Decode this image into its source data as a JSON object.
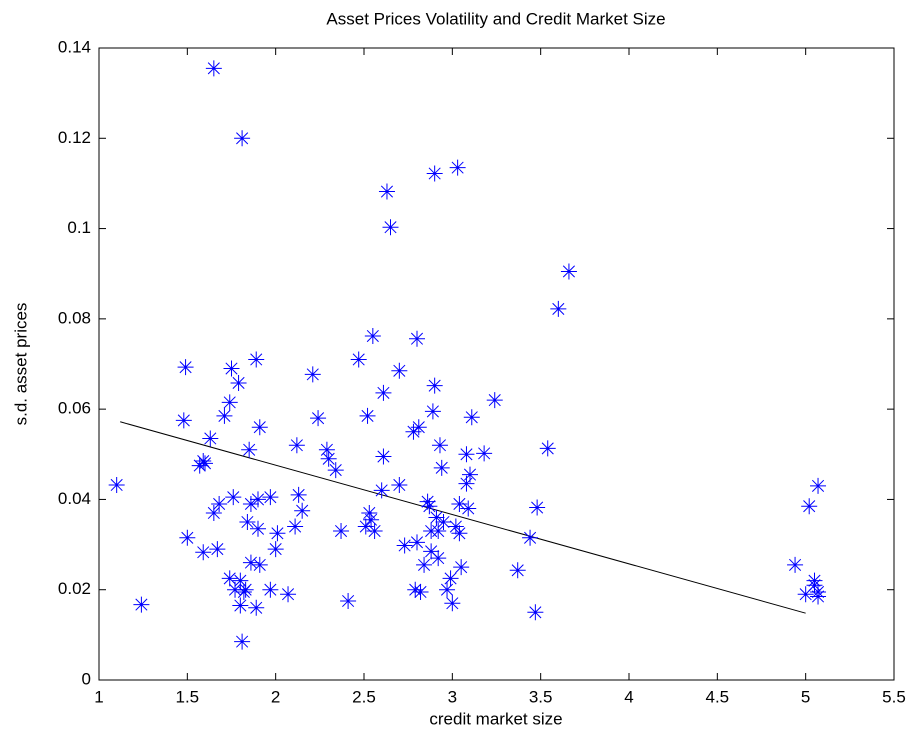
{
  "chart_data": {
    "type": "scatter",
    "title": "Asset Prices Volatility and Credit Market Size",
    "x_label": "credit market size",
    "y_label": "s.d. asset prices",
    "xlim": [
      1,
      5.5
    ],
    "xticks": [
      1,
      1.5,
      2,
      2.5,
      3,
      3.5,
      4,
      4.5,
      5,
      5.5
    ],
    "ylim": [
      0,
      0.14
    ],
    "yticks": [
      0,
      0.02,
      0.04,
      0.06,
      0.08,
      0.1,
      0.12,
      0.14
    ],
    "marker_color": "#0000ff",
    "line_color": "#000000",
    "x": [
      1.1,
      1.24,
      1.49,
      1.48,
      1.5,
      1.57,
      1.59,
      1.6,
      1.59,
      1.63,
      1.65,
      1.65,
      1.67,
      1.68,
      1.71,
      1.74,
      1.74,
      1.75,
      1.76,
      1.77,
      1.79,
      1.8,
      1.8,
      1.81,
      1.81,
      1.82,
      1.83,
      1.84,
      1.85,
      1.86,
      1.86,
      1.89,
      1.89,
      1.9,
      1.9,
      1.91,
      1.91,
      1.97,
      1.97,
      2.0,
      2.01,
      2.07,
      2.11,
      2.12,
      2.13,
      2.15,
      2.21,
      2.24,
      2.29,
      2.3,
      2.34,
      2.37,
      2.41,
      2.47,
      2.51,
      2.52,
      2.53,
      2.55,
      2.54,
      2.56,
      2.6,
      2.61,
      2.61,
      2.63,
      2.65,
      2.7,
      2.7,
      2.73,
      2.78,
      2.79,
      2.8,
      2.8,
      2.81,
      2.82,
      2.84,
      2.86,
      2.87,
      2.88,
      2.88,
      2.89,
      2.9,
      2.9,
      2.91,
      2.92,
      2.92,
      2.93,
      2.94,
      2.95,
      2.97,
      2.99,
      3.0,
      3.02,
      3.03,
      3.04,
      3.04,
      3.05,
      3.08,
      3.08,
      3.09,
      3.1,
      3.11,
      3.18,
      3.24,
      3.37,
      3.44,
      3.47,
      3.48,
      3.54,
      3.6,
      3.66,
      4.94,
      5.0,
      5.02,
      5.05,
      5.05,
      5.07,
      5.07,
      5.07
    ],
    "series": [
      {
        "values": [
          0.0432,
          0.0167,
          0.0693,
          0.0575,
          0.0315,
          0.0475,
          0.0485,
          0.048,
          0.0283,
          0.0535,
          0.1355,
          0.037,
          0.029,
          0.039,
          0.0585,
          0.0225,
          0.0615,
          0.069,
          0.0405,
          0.02,
          0.0658,
          0.022,
          0.0165,
          0.12,
          0.0085,
          0.0195,
          0.02,
          0.035,
          0.051,
          0.039,
          0.026,
          0.071,
          0.016,
          0.04,
          0.0335,
          0.056,
          0.0255,
          0.0405,
          0.02,
          0.029,
          0.0325,
          0.019,
          0.034,
          0.052,
          0.041,
          0.0375,
          0.0677,
          0.058,
          0.051,
          0.049,
          0.0465,
          0.033,
          0.0175,
          0.071,
          0.034,
          0.0585,
          0.037,
          0.0762,
          0.0355,
          0.033,
          0.042,
          0.0495,
          0.0636,
          0.1082,
          0.1003,
          0.0685,
          0.0432,
          0.0298,
          0.055,
          0.02,
          0.0756,
          0.0305,
          0.056,
          0.0195,
          0.0255,
          0.0395,
          0.0385,
          0.033,
          0.0285,
          0.0595,
          0.1122,
          0.0652,
          0.036,
          0.027,
          0.033,
          0.052,
          0.047,
          0.035,
          0.02,
          0.0225,
          0.017,
          0.034,
          0.1135,
          0.039,
          0.0325,
          0.025,
          0.05,
          0.0435,
          0.038,
          0.0455,
          0.0582,
          0.0502,
          0.062,
          0.0243,
          0.0315,
          0.015,
          0.0382,
          0.0513,
          0.0822,
          0.0905,
          0.0255,
          0.019,
          0.0385,
          0.021,
          0.022,
          0.0195,
          0.043,
          0.0185
        ]
      }
    ],
    "fit_line": {
      "x": [
        1.12,
        5.0
      ],
      "y": [
        0.0572,
        0.0148
      ]
    }
  }
}
